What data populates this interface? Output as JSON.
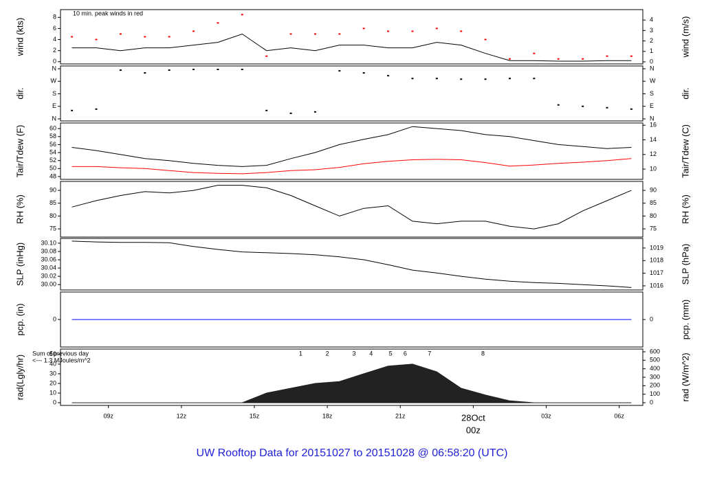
{
  "caption": "UW Rooftop Data for 20151027  to  20151028 @ 06:58:20  (UTC)",
  "chart_data": [
    {
      "type": "line",
      "ylabel": "wind (kts)",
      "y2label": "wind (m/s)",
      "annotation": "10 min. peak winds in red",
      "x": [
        7.5,
        8.5,
        9.5,
        10.5,
        11.5,
        12.5,
        13.5,
        14.5,
        15.5,
        16.5,
        17.5,
        18.5,
        19.5,
        20.5,
        21.5,
        22.5,
        23.5,
        24.5,
        25.5,
        26.5,
        27.5,
        28.5,
        29.5,
        30.5
      ],
      "ylim": [
        -0.4,
        9.4
      ],
      "yticks": [
        0,
        2,
        4,
        6,
        8
      ],
      "y2lim": [
        -0.2,
        5.0
      ],
      "y2ticks": [
        0,
        1,
        2,
        3,
        4
      ],
      "series": [
        {
          "name": "wind",
          "color": "#000000",
          "style": "line",
          "values": [
            2.5,
            2.5,
            2,
            2.5,
            2.5,
            3,
            3.5,
            5,
            2,
            2.5,
            2,
            3,
            3,
            2.5,
            2.5,
            3.5,
            3,
            1.5,
            0.2,
            0.2,
            0.1,
            0.1,
            0.2,
            0.2
          ]
        },
        {
          "name": "peak",
          "color": "#ff0000",
          "style": "dots",
          "values": [
            4.5,
            4,
            5,
            4.5,
            4.5,
            5.5,
            7,
            8.5,
            1,
            5,
            5,
            5,
            6,
            5.5,
            5.5,
            6,
            5.5,
            4,
            0.5,
            1.5,
            0.5,
            0.5,
            1,
            1
          ]
        }
      ]
    },
    {
      "type": "scatter",
      "ylabel": "dir.",
      "y2label": "dir.",
      "x": [
        7.5,
        8.5,
        9.5,
        10.5,
        11.5,
        12.5,
        13.5,
        14.5,
        15.5,
        16.5,
        17.5,
        18.5,
        19.5,
        20.5,
        21.5,
        22.5,
        23.5,
        24.5,
        25.5,
        26.5,
        27.5,
        28.5,
        29.5,
        30.5
      ],
      "ylim": [
        -15,
        380
      ],
      "yticks": [
        {
          "value": 0,
          "label": "N"
        },
        {
          "value": 90,
          "label": "E"
        },
        {
          "value": 180,
          "label": "S"
        },
        {
          "value": 270,
          "label": "W"
        },
        {
          "value": 360,
          "label": "N"
        }
      ],
      "y2lim": [
        -15,
        380
      ],
      "y2ticks": [
        {
          "value": 0,
          "label": "N"
        },
        {
          "value": 90,
          "label": "E"
        },
        {
          "value": 180,
          "label": "S"
        },
        {
          "value": 270,
          "label": "W"
        },
        {
          "value": 360,
          "label": "N"
        }
      ],
      "series": [
        {
          "name": "dir",
          "color": "#000000",
          "style": "dots",
          "values": [
            60,
            70,
            350,
            330,
            350,
            355,
            355,
            355,
            60,
            40,
            50,
            345,
            330,
            310,
            290,
            290,
            285,
            285,
            290,
            290,
            100,
            90,
            80,
            70
          ]
        }
      ]
    },
    {
      "type": "line",
      "ylabel": "Tair/Tdew (F)",
      "y2label": "Tair/Tdew (C)",
      "x": [
        7.5,
        8.5,
        9.5,
        10.5,
        11.5,
        12.5,
        13.5,
        14.5,
        15.5,
        16.5,
        17.5,
        18.5,
        19.5,
        20.5,
        21.5,
        22.5,
        23.5,
        24.5,
        25.5,
        26.5,
        27.5,
        28.5,
        29.5,
        30.5
      ],
      "ylim": [
        47.3,
        61.4
      ],
      "yticks": [
        48,
        50,
        52,
        54,
        56,
        58,
        60
      ],
      "y2lim": [
        8.6,
        16.3
      ],
      "y2ticks": [
        10,
        12,
        14,
        16
      ],
      "series": [
        {
          "name": "Tair",
          "color": "#000000",
          "style": "line",
          "values": [
            55.3,
            54.5,
            53.5,
            52.5,
            52,
            51.3,
            50.8,
            50.5,
            50.8,
            52.5,
            54,
            56,
            57.3,
            58.5,
            60.5,
            60,
            59.5,
            58.5,
            58,
            57,
            56,
            55.5,
            55,
            55.3
          ]
        },
        {
          "name": "Tdew",
          "color": "#ff0000",
          "style": "line",
          "values": [
            50.5,
            50.5,
            50.2,
            50,
            49.5,
            49,
            48.8,
            48.7,
            49,
            49.5,
            49.7,
            50.3,
            51.2,
            51.8,
            52.2,
            52.3,
            52.2,
            51.5,
            50.6,
            50.9,
            51.3,
            51.6,
            52,
            52.5
          ]
        }
      ]
    },
    {
      "type": "line",
      "ylabel": "RH (%)",
      "y2label": "RH (%)",
      "x": [
        7.5,
        8.5,
        9.5,
        10.5,
        11.5,
        12.5,
        13.5,
        14.5,
        15.5,
        16.5,
        17.5,
        18.5,
        19.5,
        20.5,
        21.5,
        22.5,
        23.5,
        24.5,
        25.5,
        26.5,
        27.5,
        28.5,
        29.5,
        30.5
      ],
      "ylim": [
        71.8,
        93.5
      ],
      "yticks": [
        75,
        80,
        85,
        90
      ],
      "y2lim": [
        71.8,
        93.5
      ],
      "y2ticks": [
        75,
        80,
        85,
        90
      ],
      "series": [
        {
          "name": "RH",
          "color": "#000000",
          "style": "line",
          "values": [
            83.5,
            86,
            88,
            89.5,
            89,
            90,
            92,
            92,
            91,
            88,
            84,
            80,
            83,
            84,
            78,
            77,
            78,
            78,
            76,
            75,
            77,
            82,
            86,
            90
          ]
        }
      ]
    },
    {
      "type": "line",
      "ylabel": "SLP (inHg)",
      "y2label": "SLP (hPa)",
      "x": [
        7.5,
        8.5,
        9.5,
        10.5,
        11.5,
        12.5,
        13.5,
        14.5,
        15.5,
        16.5,
        17.5,
        18.5,
        19.5,
        20.5,
        21.5,
        22.5,
        23.5,
        24.5,
        25.5,
        26.5,
        27.5,
        28.5,
        29.5,
        30.5
      ],
      "ylim": [
        29.987,
        30.1115
      ],
      "yticks": [
        {
          "value": 30,
          "label": "30.00"
        },
        30.02,
        30.04,
        30.06,
        30.08,
        {
          "value": 30.1,
          "label": "30.10"
        }
      ],
      "y2lim": [
        1015.67,
        1019.76
      ],
      "y2ticks": [
        1016,
        1017,
        1018,
        1019
      ],
      "series": [
        {
          "name": "SLP",
          "color": "#000000",
          "style": "line",
          "values": [
            30.105,
            30.103,
            30.102,
            30.102,
            30.101,
            30.092,
            30.085,
            30.079,
            30.077,
            30.075,
            30.072,
            30.067,
            30.06,
            30.048,
            30.035,
            30.028,
            30.02,
            30.013,
            30.008,
            30.005,
            30.003,
            30,
            29.997,
            29.993
          ]
        }
      ]
    },
    {
      "type": "line",
      "ylabel": "pcp. (in)",
      "y2label": "pcp. (mm)",
      "x": [
        7.5,
        8.5,
        9.5,
        10.5,
        11.5,
        12.5,
        13.5,
        14.5,
        15.5,
        16.5,
        17.5,
        18.5,
        19.5,
        20.5,
        21.5,
        22.5,
        23.5,
        24.5,
        25.5,
        26.5,
        27.5,
        28.5,
        29.5,
        30.5
      ],
      "ylim": [
        -1,
        1
      ],
      "yticks": [
        0
      ],
      "y2lim": [
        -1,
        1
      ],
      "y2ticks": [
        0
      ],
      "series": [
        {
          "name": "pcp",
          "color": "#0000ff",
          "style": "line",
          "values": [
            0,
            0,
            0,
            0,
            0,
            0,
            0,
            0,
            0,
            0,
            0,
            0,
            0,
            0,
            0,
            0,
            0,
            0,
            0,
            0,
            0,
            0,
            0,
            0
          ]
        }
      ]
    },
    {
      "type": "area",
      "ylabel": "rad(Lgly/hr)",
      "y2label": "rad (W/m^2)",
      "annotations": [
        "Sum of previous day",
        "<--- 1.3 MJoules/m^2"
      ],
      "markers": {
        "color": "#9900cc",
        "x": [
          16.9,
          18.0,
          19.1,
          19.8,
          20.6,
          21.2,
          22.2,
          24.4
        ],
        "labels": [
          1,
          2,
          3,
          4,
          5,
          6,
          7,
          8
        ]
      },
      "x": [
        7.5,
        8.5,
        9.5,
        10.5,
        11.5,
        12.5,
        13.5,
        14.5,
        15.5,
        16.5,
        17.5,
        18.5,
        19.5,
        20.5,
        21.5,
        22.5,
        23.5,
        24.5,
        25.5,
        26.5,
        27.5,
        28.5,
        29.5,
        30.5
      ],
      "xlim": [
        7.03,
        30.97
      ],
      "xticks": [
        {
          "value": 9,
          "label": "09z"
        },
        {
          "value": 12,
          "label": "12z"
        },
        {
          "value": 15,
          "label": "15z"
        },
        {
          "value": 18,
          "label": "18z"
        },
        {
          "value": 21,
          "label": "21z"
        },
        {
          "value": 24,
          "label": "00z"
        },
        {
          "value": 27,
          "label": "03z"
        },
        {
          "value": 30,
          "label": "06z"
        }
      ],
      "date_marker": {
        "value": 24,
        "label": "28Oct",
        "color": "#ff0000"
      },
      "ylim": [
        -2.8,
        55.6
      ],
      "yticks": [
        0,
        10,
        20,
        30,
        40,
        50
      ],
      "y2lim": [
        -32,
        632
      ],
      "y2ticks": [
        0,
        100,
        200,
        300,
        400,
        500,
        600
      ],
      "series": [
        {
          "name": "rad",
          "color": "#222222",
          "style": "area",
          "values": [
            0,
            0,
            0,
            0,
            0,
            0,
            0,
            0,
            10,
            15,
            20,
            22,
            30,
            38,
            40,
            32,
            15,
            8,
            2,
            0,
            0,
            0,
            0,
            0
          ]
        }
      ]
    }
  ]
}
